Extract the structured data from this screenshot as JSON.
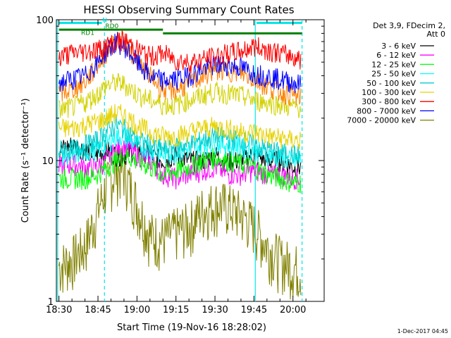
{
  "title": "HESSI Observing Summary Count Rates",
  "footer_timestamp": "1-Dec-2017 04:45",
  "legend_header": [
    "Det 3,9, FDecim 2,",
    "Att 0"
  ],
  "chart_data": {
    "type": "line",
    "title": "HESSI Observing Summary Count Rates",
    "xlabel": "Start Time (19-Nov-16 18:28:02)",
    "ylabel": "Count Rate (s⁻¹ detector⁻¹)",
    "x_ticks": [
      "18:30",
      "18:45",
      "19:00",
      "19:15",
      "19:30",
      "19:45",
      "20:00"
    ],
    "x_tick_minutes": [
      0,
      15,
      30,
      45,
      60,
      75,
      90
    ],
    "x_range_minutes": [
      -1,
      102
    ],
    "y_scale": "log",
    "ylim": [
      1,
      100
    ],
    "y_ticks": [
      "1",
      "10",
      "100"
    ],
    "grid": false,
    "legend_position": "right",
    "day_night_markers": {
      "solid_minutes": [
        -0.5,
        75.5
      ],
      "dashed_minutes": [
        17.5,
        93.5
      ]
    },
    "flags": [
      {
        "label": "N",
        "color": "#00e6e6",
        "start": 0,
        "end": 16.5,
        "level": 95
      },
      {
        "label": "N",
        "color": "#00e6e6",
        "start": 76,
        "end": 93.5,
        "level": 95
      },
      {
        "label": "RD0",
        "color": "#008000",
        "start": 0,
        "end": 40,
        "level": 85
      },
      {
        "label": "RD1",
        "color": "#008000",
        "start": 40,
        "end": 93.5,
        "level": 80
      }
    ],
    "series": [
      {
        "name": "3 - 6 keV",
        "color": "#000000",
        "x": [
          0,
          5,
          10,
          15,
          18,
          22,
          25,
          30,
          35,
          40,
          45,
          50,
          55,
          60,
          65,
          70,
          75,
          80,
          85,
          90,
          93
        ],
        "y": [
          12,
          13,
          12,
          11,
          12,
          11,
          11,
          12,
          11,
          10,
          11,
          10,
          10,
          11,
          10,
          10,
          11,
          10,
          10,
          9,
          9
        ]
      },
      {
        "name": "6 - 12 keV",
        "color": "#ff00ff",
        "x": [
          0,
          5,
          10,
          15,
          18,
          22,
          25,
          30,
          35,
          40,
          45,
          50,
          55,
          60,
          65,
          70,
          75,
          80,
          85,
          90,
          93
        ],
        "y": [
          9,
          9.5,
          9,
          9,
          10,
          12,
          13,
          11,
          10,
          8,
          7.5,
          8,
          8.5,
          9,
          8,
          8,
          8.5,
          8,
          8,
          7.5,
          7.5
        ]
      },
      {
        "name": "12 - 25 keV",
        "color": "#00ff00",
        "x": [
          0,
          5,
          10,
          15,
          18,
          22,
          25,
          30,
          35,
          40,
          45,
          50,
          55,
          60,
          65,
          70,
          75,
          80,
          85,
          90,
          93
        ],
        "y": [
          7.5,
          7.5,
          7.5,
          8,
          9,
          10,
          11,
          10,
          9,
          8,
          8.5,
          9,
          10,
          10.5,
          10,
          9.5,
          9,
          8,
          7.5,
          7,
          7
        ]
      },
      {
        "name": "25 - 50 keV",
        "color": "#00ffff",
        "x": [
          0,
          5,
          10,
          15,
          18,
          22,
          25,
          30,
          35,
          40,
          45,
          50,
          55,
          60,
          65,
          70,
          75,
          80,
          85,
          90,
          93
        ],
        "y": [
          11,
          11,
          11.5,
          12,
          13,
          15,
          15,
          13,
          12,
          11,
          11.5,
          12,
          13,
          13.5,
          13,
          12.5,
          12,
          11,
          10.5,
          10,
          10
        ]
      },
      {
        "name": "50 - 100 keV",
        "color": "#00cccc",
        "x": [
          0,
          5,
          10,
          15,
          18,
          22,
          25,
          30,
          35,
          40,
          45,
          50,
          55,
          60,
          65,
          70,
          75,
          80,
          85,
          90,
          93
        ],
        "y": [
          12,
          12,
          13,
          14,
          16,
          18,
          17,
          14,
          13,
          12,
          12.5,
          13,
          14,
          15,
          14.5,
          14,
          13,
          12,
          11.5,
          11,
          11
        ]
      },
      {
        "name": "100 - 300 keV",
        "color": "#e6d200",
        "x": [
          0,
          5,
          10,
          15,
          18,
          22,
          25,
          30,
          35,
          40,
          45,
          50,
          55,
          60,
          65,
          70,
          75,
          80,
          85,
          90,
          93
        ],
        "y": [
          17,
          17,
          18,
          19,
          20,
          22,
          21,
          18,
          16,
          15,
          15,
          16,
          17,
          17.5,
          17,
          16,
          16,
          15,
          14.5,
          14,
          14
        ]
      },
      {
        "name": "300 - 800 keV",
        "color": "#ff0000",
        "x": [
          0,
          5,
          10,
          15,
          18,
          22,
          25,
          30,
          35,
          40,
          45,
          50,
          55,
          60,
          65,
          70,
          75,
          80,
          85,
          90,
          93
        ],
        "y": [
          55,
          58,
          60,
          62,
          65,
          70,
          72,
          62,
          55,
          58,
          52,
          50,
          52,
          55,
          58,
          60,
          65,
          62,
          58,
          55,
          53
        ]
      },
      {
        "name": "800 - 7000 keV",
        "color": "#0000ff",
        "x": [
          0,
          5,
          10,
          15,
          18,
          22,
          25,
          30,
          35,
          40,
          45,
          50,
          55,
          60,
          65,
          70,
          75,
          80,
          85,
          90,
          93
        ],
        "y": [
          36,
          38,
          40,
          50,
          60,
          70,
          66,
          50,
          40,
          37,
          38,
          40,
          45,
          48,
          48,
          46,
          42,
          40,
          38,
          36,
          35
        ]
      },
      {
        "name": "7000 - 20000 keV",
        "color": "#808000",
        "x": [
          0,
          5,
          10,
          15,
          18,
          22,
          25,
          30,
          35,
          40,
          45,
          50,
          55,
          60,
          65,
          70,
          75,
          80,
          85,
          90,
          93
        ],
        "y": [
          1.8,
          2.0,
          2.5,
          4.5,
          6.5,
          8.5,
          8.5,
          5.0,
          3.0,
          2.8,
          3.2,
          3.5,
          4.5,
          5.0,
          4.8,
          4.2,
          3.5,
          2.5,
          2.0,
          1.8,
          1.7
        ]
      }
    ],
    "extra_traces": [
      {
        "color": "#ff8000",
        "x": [
          0,
          5,
          10,
          15,
          18,
          22,
          25,
          30,
          35,
          40,
          45,
          50,
          55,
          60,
          65,
          70,
          75,
          80,
          85,
          90,
          93
        ],
        "y": [
          30,
          32,
          36,
          48,
          58,
          72,
          70,
          52,
          40,
          32,
          32,
          35,
          40,
          44,
          44,
          42,
          38,
          34,
          31,
          29,
          28
        ]
      },
      {
        "color": "#d2d200",
        "x": [
          0,
          5,
          10,
          15,
          18,
          22,
          25,
          30,
          35,
          40,
          45,
          50,
          55,
          60,
          65,
          70,
          75,
          80,
          85,
          90,
          93
        ],
        "y": [
          23,
          24,
          26,
          30,
          34,
          36,
          35,
          30,
          27,
          25,
          25,
          27,
          29,
          31,
          30,
          29,
          27,
          26,
          25,
          24,
          24
        ]
      }
    ]
  }
}
